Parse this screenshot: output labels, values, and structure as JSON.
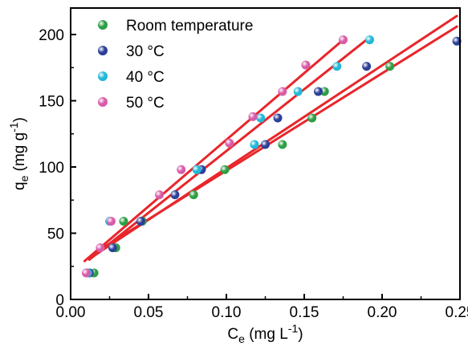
{
  "chart_data": {
    "type": "scatter",
    "xlabel": {
      "main": "C",
      "sub": "e",
      "units_pre": " (mg L",
      "units_sup": "-1",
      "units_post": ")"
    },
    "ylabel": {
      "main": "q",
      "sub": "e",
      "units_pre": " (mg g",
      "units_sup": "-1",
      "units_post": ")"
    },
    "xlim": [
      0.0,
      0.25
    ],
    "ylim": [
      0,
      220
    ],
    "xticks": [
      "0.00",
      "0.05",
      "0.10",
      "0.15",
      "0.20",
      "0.25"
    ],
    "yticks": [
      "0",
      "50",
      "100",
      "150",
      "200"
    ],
    "grid": false,
    "legend_position": "top-left",
    "fit_line_color": "#e8262b",
    "series": [
      {
        "name": "Room temperature",
        "color": "#2e9e45",
        "points": [
          {
            "x": 0.015,
            "y": 20
          },
          {
            "x": 0.029,
            "y": 39
          },
          {
            "x": 0.034,
            "y": 59
          },
          {
            "x": 0.046,
            "y": 59
          },
          {
            "x": 0.079,
            "y": 79
          },
          {
            "x": 0.099,
            "y": 98
          },
          {
            "x": 0.136,
            "y": 117
          },
          {
            "x": 0.155,
            "y": 137
          },
          {
            "x": 0.163,
            "y": 157
          },
          {
            "x": 0.205,
            "y": 176
          }
        ],
        "fit": {
          "x": [
            0.018,
            0.248
          ],
          "y": [
            37,
            206
          ]
        }
      },
      {
        "name": "30 °C",
        "color": "#2c3f98",
        "points": [
          {
            "x": 0.012,
            "y": 20
          },
          {
            "x": 0.027,
            "y": 39
          },
          {
            "x": 0.045,
            "y": 59
          },
          {
            "x": 0.067,
            "y": 79
          },
          {
            "x": 0.084,
            "y": 98
          },
          {
            "x": 0.125,
            "y": 117
          },
          {
            "x": 0.133,
            "y": 137
          },
          {
            "x": 0.159,
            "y": 157
          },
          {
            "x": 0.19,
            "y": 176
          },
          {
            "x": 0.248,
            "y": 195
          }
        ],
        "fit": {
          "x": [
            0.015,
            0.248
          ],
          "y": [
            33,
            214
          ]
        }
      },
      {
        "name": "40 °C",
        "color": "#22b8d8",
        "points": [
          {
            "x": 0.011,
            "y": 20
          },
          {
            "x": 0.025,
            "y": 59
          },
          {
            "x": 0.081,
            "y": 98
          },
          {
            "x": 0.118,
            "y": 117
          },
          {
            "x": 0.122,
            "y": 137
          },
          {
            "x": 0.146,
            "y": 157
          },
          {
            "x": 0.171,
            "y": 176
          },
          {
            "x": 0.192,
            "y": 196
          }
        ],
        "fit": {
          "x": [
            0.012,
            0.19
          ],
          "y": [
            30,
            196
          ]
        }
      },
      {
        "name": "50 °C",
        "color": "#d85ca8",
        "points": [
          {
            "x": 0.01,
            "y": 20
          },
          {
            "x": 0.019,
            "y": 39
          },
          {
            "x": 0.026,
            "y": 59
          },
          {
            "x": 0.057,
            "y": 79
          },
          {
            "x": 0.071,
            "y": 98
          },
          {
            "x": 0.102,
            "y": 118
          },
          {
            "x": 0.117,
            "y": 138
          },
          {
            "x": 0.136,
            "y": 157
          },
          {
            "x": 0.151,
            "y": 177
          },
          {
            "x": 0.175,
            "y": 196
          }
        ],
        "fit": {
          "x": [
            0.009,
            0.175
          ],
          "y": [
            29,
            196
          ]
        }
      }
    ]
  }
}
